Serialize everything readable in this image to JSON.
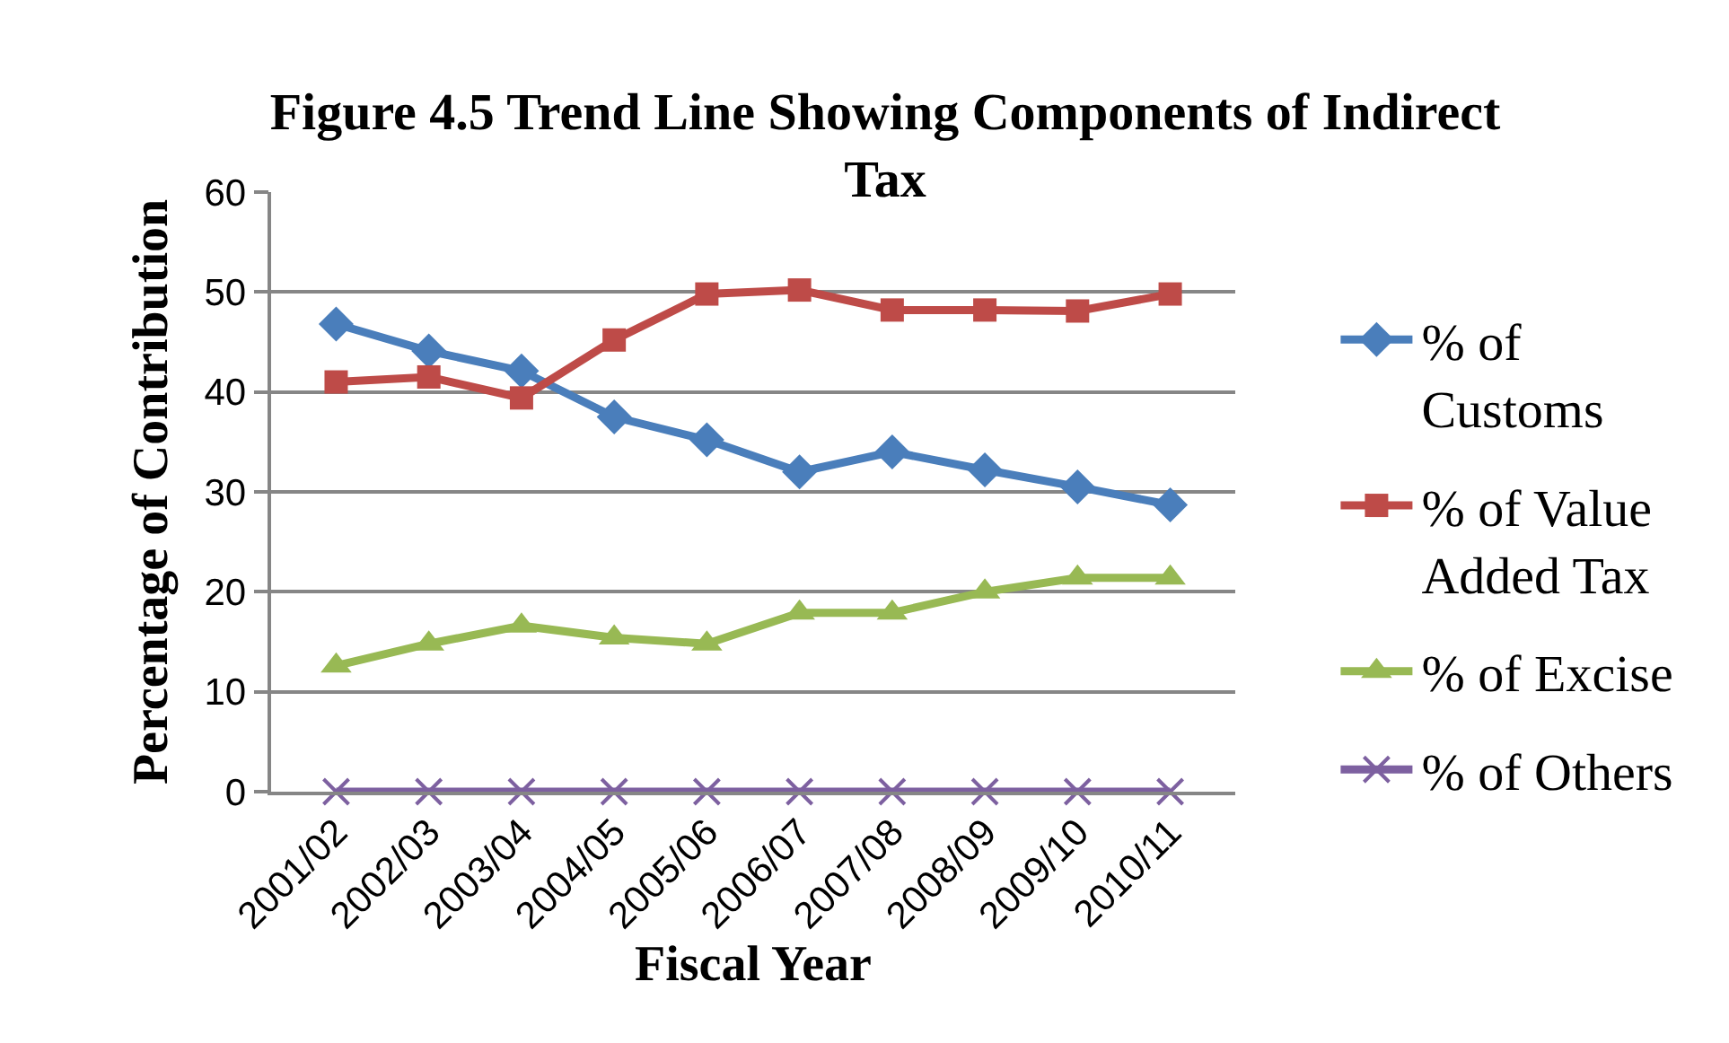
{
  "chart_data": {
    "type": "line",
    "title": "Figure 4.5 Trend Line Showing Components of Indirect Tax",
    "xlabel": "Fiscal Year",
    "ylabel": "Percentage of Contribution",
    "categories": [
      "2001/02",
      "2002/03",
      "2003/04",
      "2004/05",
      "2005/06",
      "2006/07",
      "2007/08",
      "2008/09",
      "2009/10",
      "2010/11"
    ],
    "series": [
      {
        "name": "% of Customs",
        "color": "#4a7ebb",
        "marker": "diamond",
        "values": [
          46.8,
          44.1,
          42.1,
          37.5,
          35.2,
          32.0,
          34.0,
          32.2,
          30.5,
          28.7
        ]
      },
      {
        "name": "% of Value Added Tax",
        "color": "#be4b48",
        "marker": "square",
        "values": [
          41.0,
          41.5,
          39.4,
          45.2,
          49.8,
          50.2,
          48.2,
          48.2,
          48.1,
          49.8
        ]
      },
      {
        "name": "% of Excise",
        "color": "#98b954",
        "marker": "triangle",
        "values": [
          12.6,
          14.8,
          16.6,
          15.4,
          14.8,
          17.9,
          17.9,
          20.0,
          21.4,
          21.4
        ]
      },
      {
        "name": "% of Others",
        "color": "#7d60a0",
        "marker": "cross",
        "values": [
          0,
          0,
          0,
          0,
          0,
          0,
          0,
          0,
          0,
          0
        ]
      }
    ],
    "ylim": [
      0,
      60
    ],
    "yticks": [
      0,
      10,
      20,
      30,
      40,
      50,
      60
    ],
    "grid": "y",
    "legend": "right",
    "line_style": "solid"
  }
}
